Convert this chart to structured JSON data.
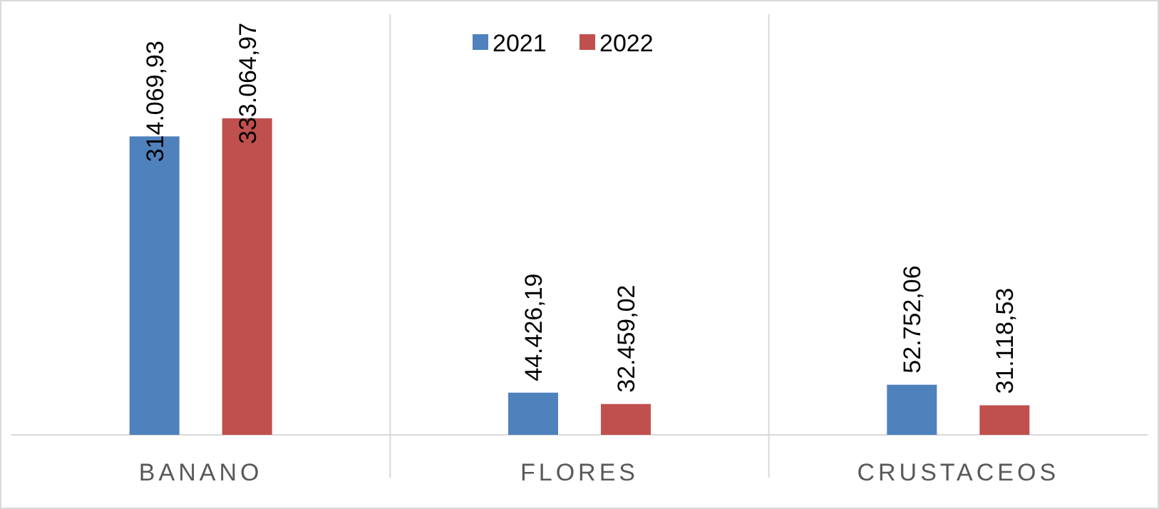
{
  "chart_data": {
    "type": "bar",
    "categories": [
      "BANANO",
      "FLORES",
      "CRUSTACEOS"
    ],
    "series": [
      {
        "name": "2021",
        "color": "#4f81bd",
        "values": [
          314069.93,
          44426.19,
          52752.06
        ],
        "value_labels": [
          "314.069,93",
          "44.426,19",
          "52.752,06"
        ]
      },
      {
        "name": "2022",
        "color": "#c0504d",
        "values": [
          333064.97,
          32459.02,
          31118.53
        ],
        "value_labels": [
          "333.064,97",
          "32.459,02",
          "31.118,53"
        ]
      }
    ],
    "legend": "top",
    "grid": "x"
  }
}
